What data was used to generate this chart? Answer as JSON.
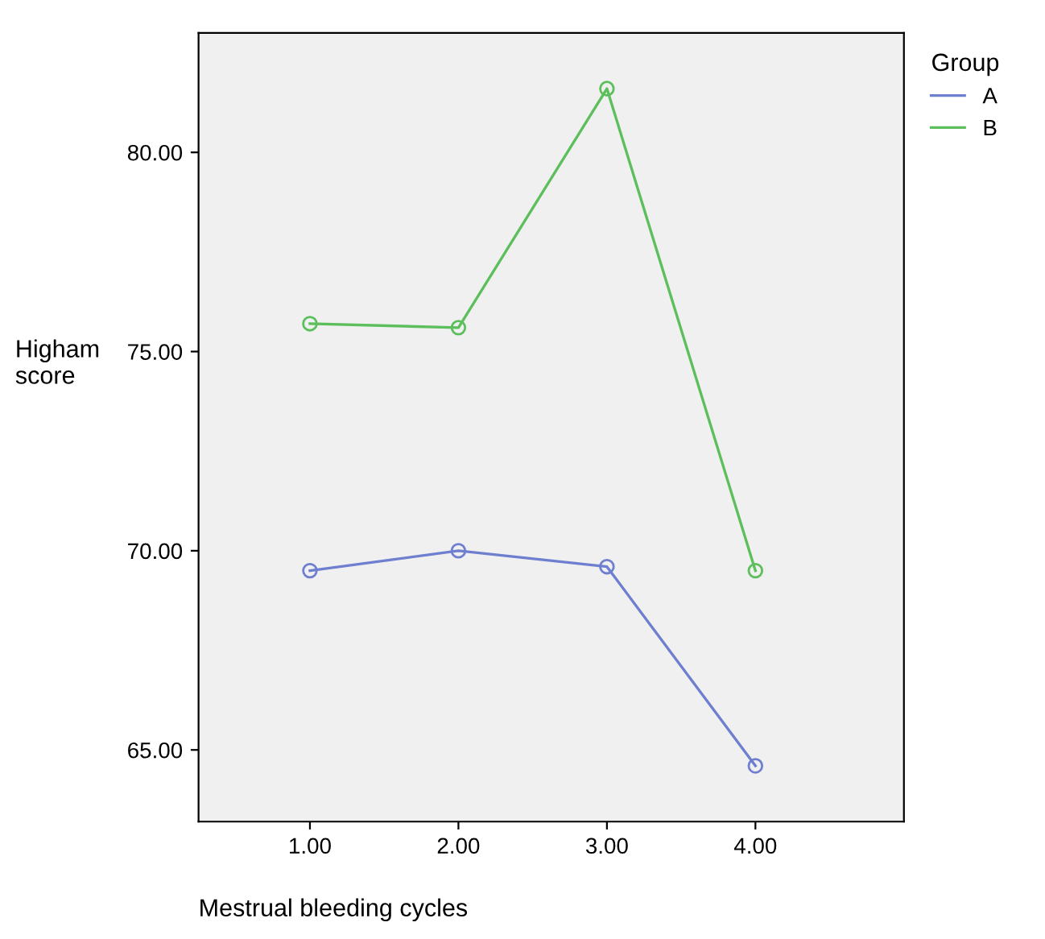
{
  "chart_data": {
    "type": "line",
    "xlabel": "Mestrual bleeding cycles",
    "ylabel": "Higham\nscore",
    "legend_title": "Group",
    "legend": "top right",
    "marker": "circle",
    "line_style": "solid",
    "grid": false,
    "x": [
      1,
      2,
      3,
      4
    ],
    "xlim": [
      0.25,
      5.0
    ],
    "xticks": [
      {
        "value": 1,
        "label": "1.00"
      },
      {
        "value": 2,
        "label": "2.00"
      },
      {
        "value": 3,
        "label": "3.00"
      },
      {
        "value": 4,
        "label": "4.00"
      }
    ],
    "ylim": [
      63.2,
      83.0
    ],
    "yticks": [
      {
        "value": 65,
        "label": "65.00"
      },
      {
        "value": 70,
        "label": "70.00"
      },
      {
        "value": 75,
        "label": "75.00"
      },
      {
        "value": 80,
        "label": "80.00"
      }
    ],
    "series": [
      {
        "name": "A",
        "color": "#6f7fcf",
        "values": [
          69.5,
          70.0,
          69.6,
          64.6
        ]
      },
      {
        "name": "B",
        "color": "#5cbf5c",
        "values": [
          75.7,
          75.6,
          81.6,
          69.5
        ]
      }
    ]
  }
}
